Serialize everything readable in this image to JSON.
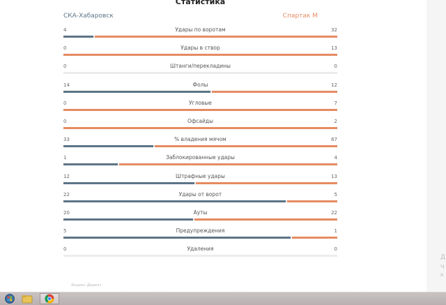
{
  "title": "Статистика",
  "teams": {
    "home": "СКА-Хабаровск",
    "away": "Спартак М"
  },
  "colors": {
    "home": "#5c7486",
    "away": "#e58b62"
  },
  "stats": [
    {
      "label": "Удары по воротам",
      "home": "4",
      "away": "32"
    },
    {
      "label": "Удары в створ",
      "home": "0",
      "away": "13"
    },
    {
      "label": "Штанги/перекладины",
      "home": "0",
      "away": "0"
    },
    {
      "label": "Фолы",
      "home": "14",
      "away": "12"
    },
    {
      "label": "Угловые",
      "home": "0",
      "away": "7"
    },
    {
      "label": "Офсайды",
      "home": "0",
      "away": "2"
    },
    {
      "label": "% владения мячом",
      "home": "33",
      "away": "67"
    },
    {
      "label": "Заблокированные удары",
      "home": "1",
      "away": "4"
    },
    {
      "label": "Штрафные удары",
      "home": "12",
      "away": "13"
    },
    {
      "label": "Удары от ворот",
      "home": "22",
      "away": "5"
    },
    {
      "label": "Ауты",
      "home": "20",
      "away": "22"
    },
    {
      "label": "Предупреждения",
      "home": "5",
      "away": "1"
    },
    {
      "label": "Удаления",
      "home": "0",
      "away": "0"
    }
  ],
  "ad_label": "Яндекс.Директ",
  "right_rail_texts": [
    "Д",
    "Ч",
    "к"
  ],
  "taskbar": {
    "icons": [
      "windows-start-icon",
      "file-explorer-icon",
      "chrome-icon"
    ]
  }
}
